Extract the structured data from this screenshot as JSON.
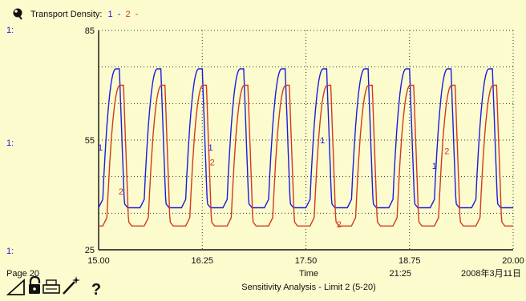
{
  "header": {
    "title": "Transport Density:",
    "series_1_tag": "1",
    "separator_1": "-",
    "series_2_tag": "2",
    "separator_2": "-"
  },
  "scale_tags": [
    "1:",
    "1:",
    "1:"
  ],
  "footer": {
    "page": "Page 20",
    "time_label": "Time",
    "clock": "21:25",
    "date": "2008年3月11日",
    "run_title": "Sensitivity Analysis - Limit 2 (5-20)",
    "help": "?"
  },
  "toolbar_icons": [
    "page-turn-icon",
    "lock-icon",
    "print-icon",
    "wand-icon",
    "help-icon"
  ],
  "colors": {
    "series_1": "#1c1ce0",
    "series_2": "#d23b1c",
    "background": "#fbfbce",
    "grid": "#000000"
  },
  "chart_data": {
    "type": "line",
    "title": "Transport Density:",
    "xlabel": "Time",
    "ylabel": "",
    "xlim": [
      15.0,
      20.0
    ],
    "ylim": [
      25,
      85
    ],
    "x_ticks": [
      "15.00",
      "16.25",
      "17.50",
      "18.75",
      "20.00"
    ],
    "y_ticks": [
      "25",
      "55",
      "85"
    ],
    "grid": true,
    "series": [
      {
        "name": "1",
        "low": 36.5,
        "high": 74.5,
        "period": 0.5,
        "x_start": 15.0
      },
      {
        "name": "2",
        "low": 31.5,
        "high": 70.0,
        "period": 0.5,
        "x_start": 15.05
      }
    ],
    "curve_labels": [
      {
        "text": "1",
        "series": "1",
        "x": 15.02,
        "y": 53
      },
      {
        "text": "2",
        "series": "2",
        "x": 15.27,
        "y": 41
      },
      {
        "text": "1",
        "series": "1",
        "x": 16.35,
        "y": 53
      },
      {
        "text": "2",
        "series": "2",
        "x": 16.37,
        "y": 49
      },
      {
        "text": "1",
        "series": "1",
        "x": 17.7,
        "y": 55
      },
      {
        "text": "2",
        "series": "2",
        "x": 17.9,
        "y": 32
      },
      {
        "text": "1",
        "series": "1",
        "x": 19.05,
        "y": 48
      },
      {
        "text": "2",
        "series": "2",
        "x": 19.2,
        "y": 52
      }
    ]
  }
}
